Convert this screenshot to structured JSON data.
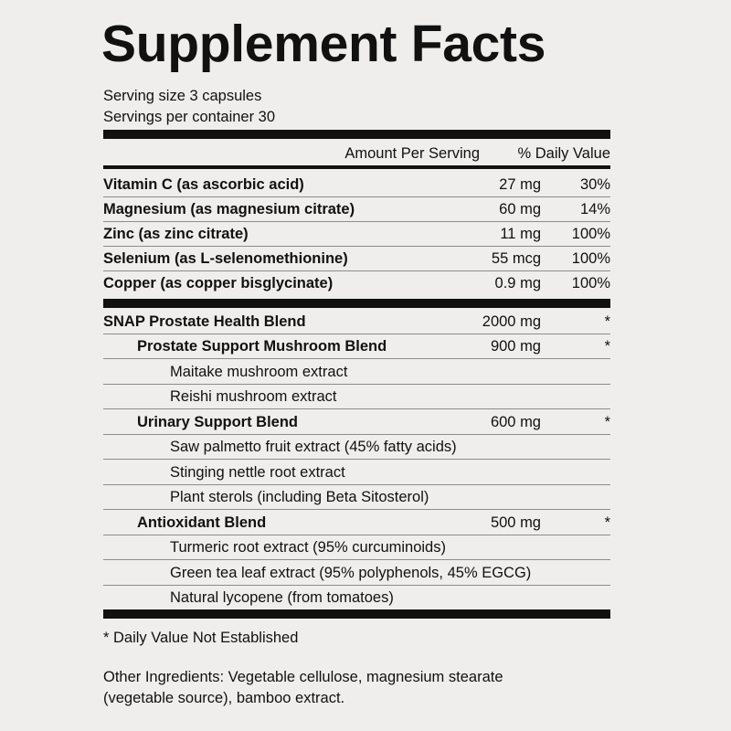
{
  "title": "Supplement Facts",
  "serving": [
    "Serving size 3 capsules",
    "Servings per container 30"
  ],
  "header": {
    "amount": "Amount Per Serving",
    "dv": "% Daily Value"
  },
  "nutrients": [
    {
      "name": "Vitamin C (as ascorbic acid)",
      "amount": "27 mg",
      "dv": "30%"
    },
    {
      "name": "Magnesium (as magnesium citrate)",
      "amount": "60 mg",
      "dv": "14%"
    },
    {
      "name": "Zinc (as zinc citrate)",
      "amount": "11 mg",
      "dv": "100%"
    },
    {
      "name": "Selenium (as L-selenomethionine)",
      "amount": "55 mcg",
      "dv": "100%"
    },
    {
      "name": "Copper (as copper bisglycinate)",
      "amount": "0.9 mg",
      "dv": "100%"
    }
  ],
  "blend": {
    "name": "SNAP Prostate Health Blend",
    "amount": "2000 mg",
    "dv": "*",
    "sub_blends": [
      {
        "name": "Prostate Support Mushroom Blend",
        "amount": "900 mg",
        "dv": "*",
        "ingredients": [
          "Maitake mushroom extract",
          "Reishi mushroom extract"
        ]
      },
      {
        "name": "Urinary Support Blend",
        "amount": "600 mg",
        "dv": "*",
        "ingredients": [
          "Saw palmetto fruit extract (45% fatty acids)",
          "Stinging nettle root extract",
          "Plant sterols (including Beta Sitosterol)"
        ]
      },
      {
        "name": "Antioxidant Blend",
        "amount": "500 mg",
        "dv": "*",
        "ingredients": [
          "Turmeric root extract (95% curcuminoids)",
          "Green tea leaf extract (95% polyphenols, 45% EGCG)",
          "Natural lycopene (from tomatoes)"
        ]
      }
    ]
  },
  "footnote": "* Daily Value Not Established",
  "other_ingredients": [
    "Other Ingredients: Vegetable cellulose, magnesium stearate",
    "(vegetable source), bamboo extract."
  ]
}
